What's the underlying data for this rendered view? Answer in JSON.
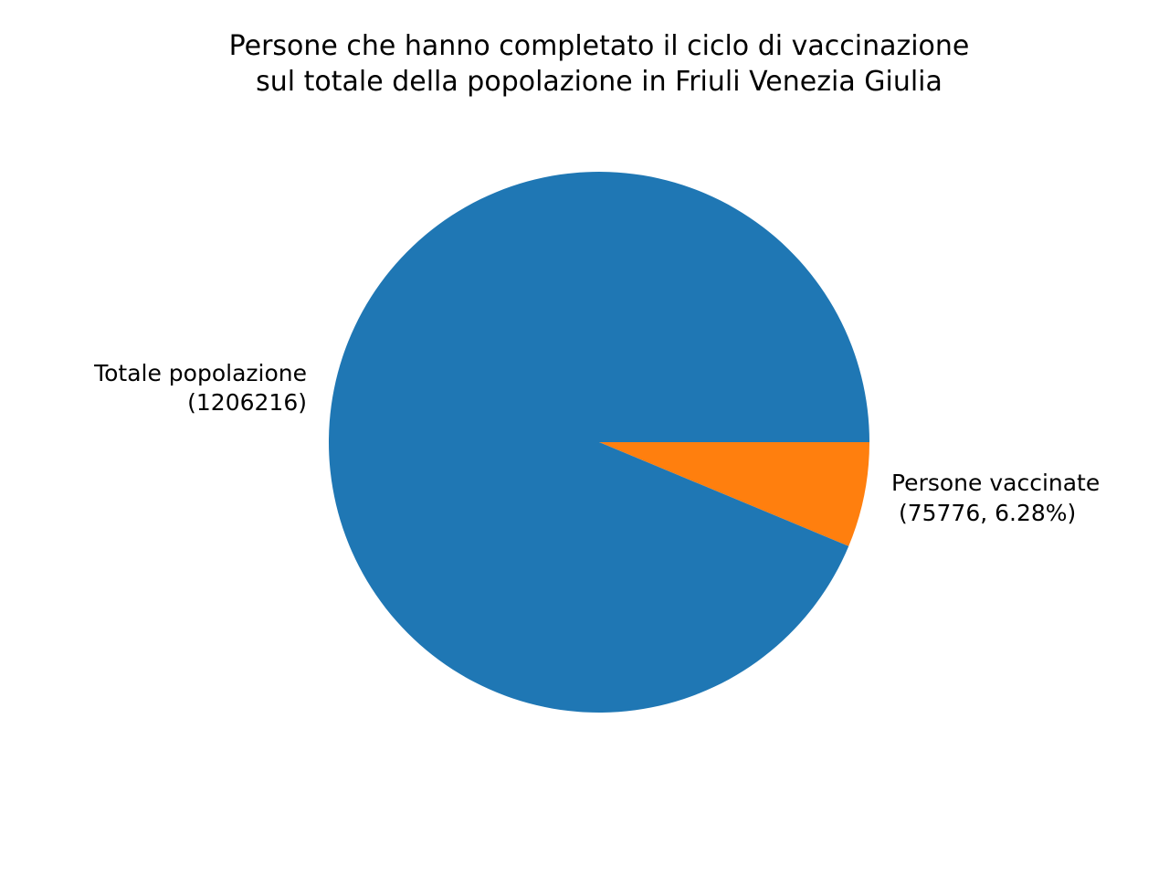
{
  "chart_data": {
    "type": "pie",
    "title": [
      "Persone che hanno completato il ciclo di vaccinazione",
      "sul totale della popolazione in Friuli Venezia Giulia"
    ],
    "slices": [
      {
        "name": "Persone vaccinate",
        "value": 75776,
        "percent": 6.28,
        "color": "#ff7f0e",
        "label_lines": [
          "Persone vaccinate",
          " (75776, 6.28%)"
        ]
      },
      {
        "name": "Totale popolazione",
        "value": 1130440,
        "color": "#1f77b4",
        "label_lines": [
          "Totale popolazione",
          "(1206216)"
        ]
      }
    ],
    "total_population": 1206216,
    "start_angle_deg": 0,
    "direction": "clockwise",
    "legend": "none"
  }
}
